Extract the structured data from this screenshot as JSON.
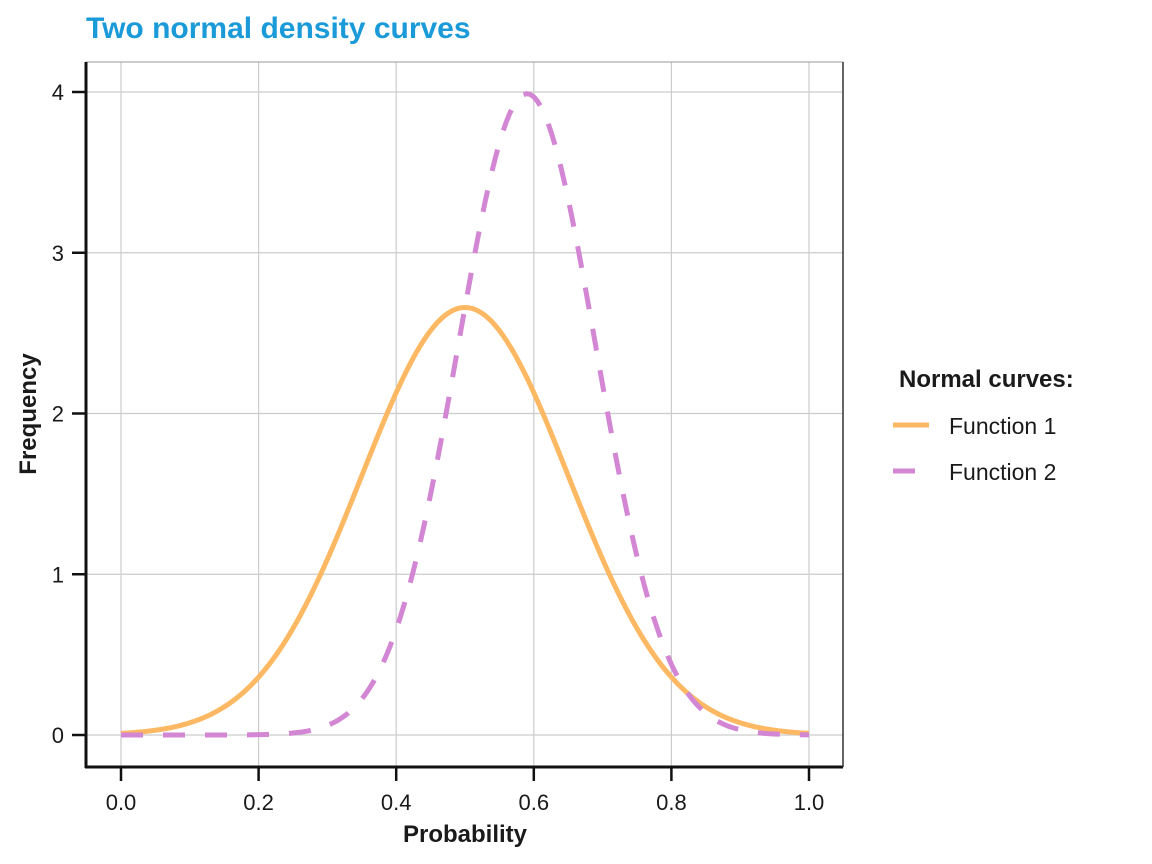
{
  "chart_data": {
    "type": "line",
    "title": "Two normal density curves",
    "xlabel": "Probability",
    "ylabel": "Frequency",
    "xlim": [
      -0.05,
      1.05
    ],
    "ylim": [
      -0.2,
      4.2
    ],
    "xticks": [
      0.0,
      0.2,
      0.4,
      0.6,
      0.8,
      1.0
    ],
    "xtick_labels": [
      "0.0",
      "0.2",
      "0.4",
      "0.6",
      "0.8",
      "1.0"
    ],
    "yticks": [
      0,
      1,
      2,
      3,
      4
    ],
    "ytick_labels": [
      "0",
      "1",
      "2",
      "3",
      "4"
    ],
    "grid": true,
    "legend": {
      "title": "Normal curves:",
      "position": "right",
      "entries": [
        "Function 1",
        "Function 2"
      ]
    },
    "series": [
      {
        "name": "Function 1",
        "distribution": "normal",
        "mean": 0.5,
        "sd": 0.15,
        "x_range": [
          0,
          1
        ],
        "color": "#fdb863",
        "linestyle": "solid",
        "peak": 2.66
      },
      {
        "name": "Function 2",
        "distribution": "normal",
        "mean": 0.59,
        "sd": 0.1,
        "x_range": [
          0,
          1
        ],
        "color": "#d386d3",
        "linestyle": "dashed",
        "peak": 3.99
      }
    ]
  }
}
